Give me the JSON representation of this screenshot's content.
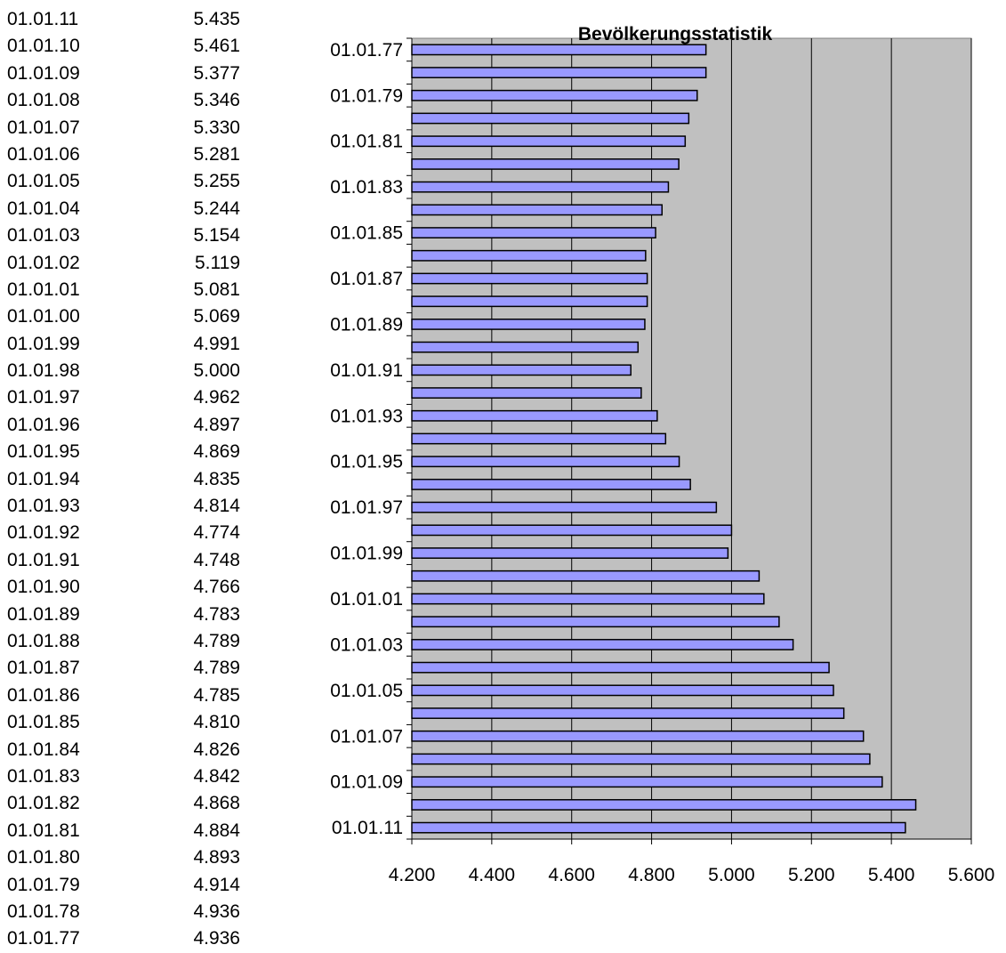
{
  "table": {
    "rows": [
      {
        "date": "01.01.11",
        "value": "5.435"
      },
      {
        "date": "01.01.10",
        "value": "5.461"
      },
      {
        "date": "01.01.09",
        "value": "5.377"
      },
      {
        "date": "01.01.08",
        "value": "5.346"
      },
      {
        "date": "01.01.07",
        "value": "5.330"
      },
      {
        "date": "01.01.06",
        "value": "5.281"
      },
      {
        "date": "01.01.05",
        "value": "5.255"
      },
      {
        "date": "01.01.04",
        "value": "5.244"
      },
      {
        "date": "01.01.03",
        "value": "5.154"
      },
      {
        "date": "01.01.02",
        "value": "5.119"
      },
      {
        "date": "01.01.01",
        "value": "5.081"
      },
      {
        "date": "01.01.00",
        "value": "5.069"
      },
      {
        "date": "01.01.99",
        "value": "4.991"
      },
      {
        "date": "01.01.98",
        "value": "5.000"
      },
      {
        "date": "01.01.97",
        "value": "4.962"
      },
      {
        "date": "01.01.96",
        "value": "4.897"
      },
      {
        "date": "01.01.95",
        "value": "4.869"
      },
      {
        "date": "01.01.94",
        "value": "4.835"
      },
      {
        "date": "01.01.93",
        "value": "4.814"
      },
      {
        "date": "01.01.92",
        "value": "4.774"
      },
      {
        "date": "01.01.91",
        "value": "4.748"
      },
      {
        "date": "01.01.90",
        "value": "4.766"
      },
      {
        "date": "01.01.89",
        "value": "4.783"
      },
      {
        "date": "01.01.88",
        "value": "4.789"
      },
      {
        "date": "01.01.87",
        "value": "4.789"
      },
      {
        "date": "01.01.86",
        "value": "4.785"
      },
      {
        "date": "01.01.85",
        "value": "4.810"
      },
      {
        "date": "01.01.84",
        "value": "4.826"
      },
      {
        "date": "01.01.83",
        "value": "4.842"
      },
      {
        "date": "01.01.82",
        "value": "4.868"
      },
      {
        "date": "01.01.81",
        "value": "4.884"
      },
      {
        "date": "01.01.80",
        "value": "4.893"
      },
      {
        "date": "01.01.79",
        "value": "4.914"
      },
      {
        "date": "01.01.78",
        "value": "4.936"
      },
      {
        "date": "01.01.77",
        "value": "4.936"
      }
    ]
  },
  "chart_data": {
    "type": "bar",
    "orientation": "horizontal",
    "title": "Bevölkerungsstatistik",
    "categories": [
      "01.01.77",
      "01.01.78",
      "01.01.79",
      "01.01.80",
      "01.01.81",
      "01.01.82",
      "01.01.83",
      "01.01.84",
      "01.01.85",
      "01.01.86",
      "01.01.87",
      "01.01.88",
      "01.01.89",
      "01.01.90",
      "01.01.91",
      "01.01.92",
      "01.01.93",
      "01.01.94",
      "01.01.95",
      "01.01.96",
      "01.01.97",
      "01.01.98",
      "01.01.99",
      "01.01.00",
      "01.01.01",
      "01.01.02",
      "01.01.03",
      "01.01.04",
      "01.01.05",
      "01.01.06",
      "01.01.07",
      "01.01.08",
      "01.01.09",
      "01.01.10",
      "01.01.11"
    ],
    "category_tick_labels": [
      "01.01.77",
      "01.01.79",
      "01.01.81",
      "01.01.83",
      "01.01.85",
      "01.01.87",
      "01.01.89",
      "01.01.91",
      "01.01.93",
      "01.01.95",
      "01.01.97",
      "01.01.99",
      "01.01.01",
      "01.01.03",
      "01.01.05",
      "01.01.07",
      "01.01.09",
      "01.01.11"
    ],
    "values": [
      4936,
      4936,
      4914,
      4893,
      4884,
      4868,
      4842,
      4826,
      4810,
      4785,
      4789,
      4789,
      4783,
      4766,
      4748,
      4774,
      4814,
      4835,
      4869,
      4897,
      4962,
      5000,
      4991,
      5069,
      5081,
      5119,
      5154,
      5244,
      5255,
      5281,
      5330,
      5346,
      5377,
      5461,
      5435
    ],
    "xlim": [
      4200,
      5600
    ],
    "x_ticks": [
      "4.200",
      "4.400",
      "4.600",
      "4.800",
      "5.000",
      "5.200",
      "5.400",
      "5.600"
    ],
    "xlabel": "",
    "ylabel": "",
    "grid": "vertical",
    "legend": "none",
    "colors": {
      "bar": "#9999ff",
      "bar_edge": "#000000",
      "plot_bg": "#c0c0c0",
      "grid": "#000000"
    }
  }
}
